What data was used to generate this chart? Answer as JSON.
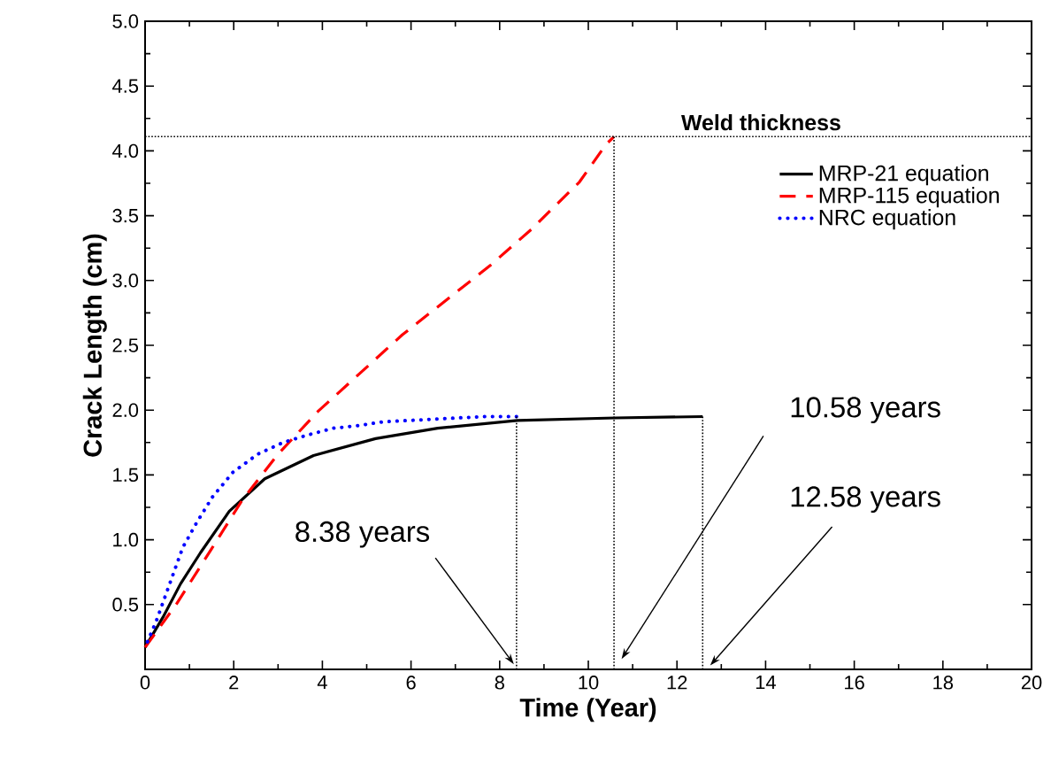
{
  "chart_data": {
    "type": "line",
    "xlabel": "Time (Year)",
    "ylabel": "Crack Length (cm)",
    "xlim": [
      0,
      20
    ],
    "ylim": [
      0,
      5
    ],
    "xticks": [
      0,
      2,
      4,
      6,
      8,
      10,
      12,
      14,
      16,
      18,
      20
    ],
    "yticks": [
      0.5,
      {
        "value": 1,
        "label": "1.0"
      },
      1.5,
      {
        "value": 2,
        "label": "2.0"
      },
      2.5,
      {
        "value": 3,
        "label": "3.0"
      },
      3.5,
      {
        "value": 4,
        "label": "4.0"
      },
      4.5,
      {
        "value": 5,
        "label": "5.0"
      }
    ],
    "legend": "top right",
    "series": [
      {
        "name": "MRP-21 equation",
        "color": "#000000",
        "line_style": "solid",
        "x": [
          0,
          0.4,
          0.8,
          1.25,
          1.9,
          2.7,
          3.8,
          5.2,
          6.6,
          8.4,
          10.6,
          12.58
        ],
        "values": [
          0.17,
          0.4,
          0.66,
          0.9,
          1.22,
          1.47,
          1.65,
          1.78,
          1.86,
          1.92,
          1.94,
          1.95
        ]
      },
      {
        "name": "MRP-115 equation",
        "color": "#ff0000",
        "line_style": "dashed",
        "x": [
          0,
          0.7,
          1.5,
          2.2,
          3.0,
          3.9,
          5.8,
          7.8,
          8.7,
          9.8,
          10.4,
          10.58
        ],
        "values": [
          0.17,
          0.5,
          0.93,
          1.31,
          1.66,
          1.99,
          2.58,
          3.12,
          3.39,
          3.76,
          4.05,
          4.11
        ]
      },
      {
        "name": "NRC equation",
        "color": "#0000ff",
        "line_style": "dotted",
        "x": [
          0,
          0.25,
          0.45,
          0.85,
          1.16,
          1.52,
          1.98,
          2.54,
          3.11,
          3.69,
          4.24,
          4.8,
          5.37,
          6.5,
          7.64,
          8.38
        ],
        "values": [
          0.17,
          0.37,
          0.56,
          0.94,
          1.13,
          1.33,
          1.52,
          1.66,
          1.75,
          1.81,
          1.86,
          1.88,
          1.91,
          1.93,
          1.95,
          1.95
        ]
      }
    ],
    "ref_lines": [
      {
        "axis": "y",
        "value": 4.11,
        "label": "Weld thickness",
        "line_style": "dotted",
        "color": "#000000"
      },
      {
        "axis": "x",
        "value": 8.38,
        "label": "8.38 years",
        "line_style": "dotted",
        "color": "#000000"
      },
      {
        "axis": "x",
        "value": 10.58,
        "label": "10.58 years",
        "line_style": "dotted",
        "color": "#000000"
      },
      {
        "axis": "x",
        "value": 12.58,
        "label": "12.58 years",
        "line_style": "dotted",
        "color": "#000000"
      }
    ]
  }
}
